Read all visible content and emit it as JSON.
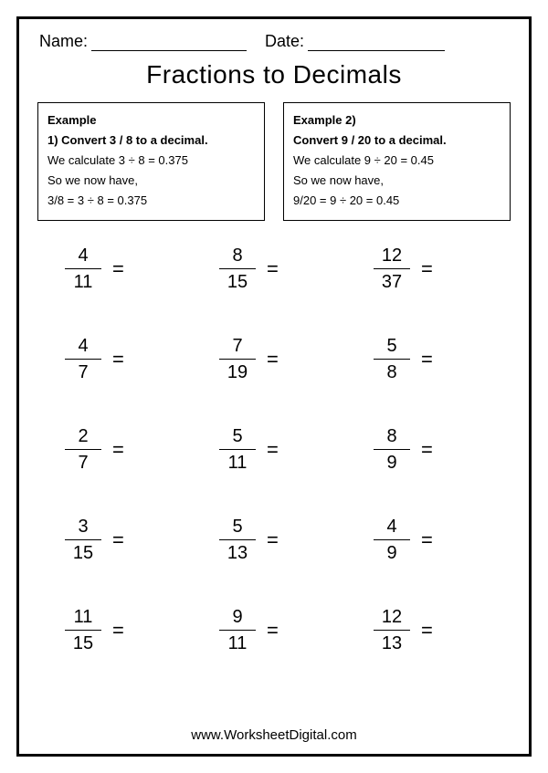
{
  "header": {
    "name_label": "Name:",
    "date_label": "Date:"
  },
  "title": "Fractions to Decimals",
  "examples": [
    {
      "heading": "Example",
      "prompt": "1) Convert   3 / 8 to a decimal.",
      "line1": "We calculate 3 ÷ 8 = 0.375",
      "line2": "So we now have,",
      "line3": "3/8   =   3 ÷ 8 = 0.375"
    },
    {
      "heading": "Example 2)",
      "prompt": "Convert   9 / 20 to a decimal.",
      "line1": "We calculate 9 ÷ 20 = 0.45",
      "line2": "So we now have,",
      "line3": "9/20   =   9 ÷ 20 = 0.45"
    }
  ],
  "problems": [
    [
      {
        "n": "4",
        "d": "11"
      },
      {
        "n": "8",
        "d": "15"
      },
      {
        "n": "12",
        "d": "37"
      }
    ],
    [
      {
        "n": "4",
        "d": "7"
      },
      {
        "n": "7",
        "d": "19"
      },
      {
        "n": "5",
        "d": "8"
      }
    ],
    [
      {
        "n": "2",
        "d": "7"
      },
      {
        "n": "5",
        "d": "11"
      },
      {
        "n": "8",
        "d": "9"
      }
    ],
    [
      {
        "n": "3",
        "d": "15"
      },
      {
        "n": "5",
        "d": "13"
      },
      {
        "n": "4",
        "d": "9"
      }
    ],
    [
      {
        "n": "11",
        "d": "15"
      },
      {
        "n": "9",
        "d": "11"
      },
      {
        "n": "12",
        "d": "13"
      }
    ]
  ],
  "equals": "=",
  "footer": "www.WorksheetDigital.com"
}
